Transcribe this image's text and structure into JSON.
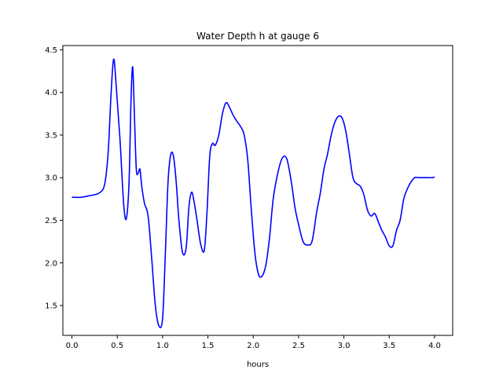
{
  "chart_data": {
    "type": "line",
    "title": "Water Depth h at gauge 6",
    "xlabel": "hours",
    "ylabel": "",
    "xlim": [
      -0.1,
      4.2
    ],
    "ylim": [
      1.15,
      4.55
    ],
    "xticks": [
      0.0,
      0.5,
      1.0,
      1.5,
      2.0,
      2.5,
      3.0,
      3.5,
      4.0
    ],
    "xtick_labels": [
      "0.0",
      "0.5",
      "1.0",
      "1.5",
      "2.0",
      "2.5",
      "3.0",
      "3.5",
      "4.0"
    ],
    "yticks": [
      1.5,
      2.0,
      2.5,
      3.0,
      3.5,
      4.0,
      4.5
    ],
    "ytick_labels": [
      "1.5",
      "2.0",
      "2.5",
      "3.0",
      "3.5",
      "4.0",
      "4.5"
    ],
    "grid": false,
    "series": [
      {
        "color": "#0000ff",
        "x": [
          0.0,
          0.1,
          0.2,
          0.3,
          0.36,
          0.4,
          0.43,
          0.46,
          0.49,
          0.53,
          0.57,
          0.6,
          0.63,
          0.65,
          0.67,
          0.69,
          0.71,
          0.73,
          0.75,
          0.77,
          0.8,
          0.84,
          0.88,
          0.92,
          0.96,
          1.0,
          1.03,
          1.06,
          1.09,
          1.12,
          1.15,
          1.18,
          1.22,
          1.26,
          1.29,
          1.32,
          1.35,
          1.38,
          1.42,
          1.46,
          1.49,
          1.52,
          1.55,
          1.58,
          1.62,
          1.66,
          1.7,
          1.74,
          1.78,
          1.82,
          1.86,
          1.9,
          1.94,
          1.98,
          2.02,
          2.06,
          2.1,
          2.14,
          2.18,
          2.22,
          2.27,
          2.32,
          2.37,
          2.42,
          2.46,
          2.5,
          2.55,
          2.6,
          2.65,
          2.7,
          2.74,
          2.78,
          2.82,
          2.86,
          2.9,
          2.94,
          2.98,
          3.02,
          3.06,
          3.1,
          3.14,
          3.18,
          3.22,
          3.26,
          3.3,
          3.34,
          3.38,
          3.42,
          3.46,
          3.5,
          3.54,
          3.58,
          3.62,
          3.66,
          3.7,
          3.74,
          3.78,
          3.82,
          3.86,
          3.9,
          3.94,
          3.98,
          4.0
        ],
        "y": [
          2.77,
          2.77,
          2.79,
          2.82,
          2.92,
          3.3,
          3.95,
          4.39,
          4.05,
          3.45,
          2.7,
          2.52,
          2.95,
          3.85,
          4.3,
          3.7,
          3.1,
          3.05,
          3.1,
          2.9,
          2.7,
          2.55,
          2.05,
          1.5,
          1.26,
          1.35,
          2.1,
          2.95,
          3.27,
          3.25,
          2.95,
          2.5,
          2.12,
          2.18,
          2.65,
          2.83,
          2.7,
          2.5,
          2.22,
          2.15,
          2.6,
          3.25,
          3.4,
          3.38,
          3.5,
          3.75,
          3.88,
          3.82,
          3.73,
          3.66,
          3.6,
          3.5,
          3.2,
          2.6,
          2.1,
          1.86,
          1.85,
          1.98,
          2.3,
          2.75,
          3.05,
          3.23,
          3.22,
          2.95,
          2.65,
          2.45,
          2.25,
          2.21,
          2.26,
          2.6,
          2.82,
          3.1,
          3.28,
          3.5,
          3.65,
          3.72,
          3.7,
          3.55,
          3.28,
          3.0,
          2.93,
          2.9,
          2.8,
          2.62,
          2.55,
          2.58,
          2.48,
          2.38,
          2.3,
          2.2,
          2.2,
          2.38,
          2.5,
          2.75,
          2.87,
          2.95,
          3.0,
          3.0,
          3.0,
          3.0,
          3.0,
          3.0,
          3.01
        ]
      }
    ]
  }
}
